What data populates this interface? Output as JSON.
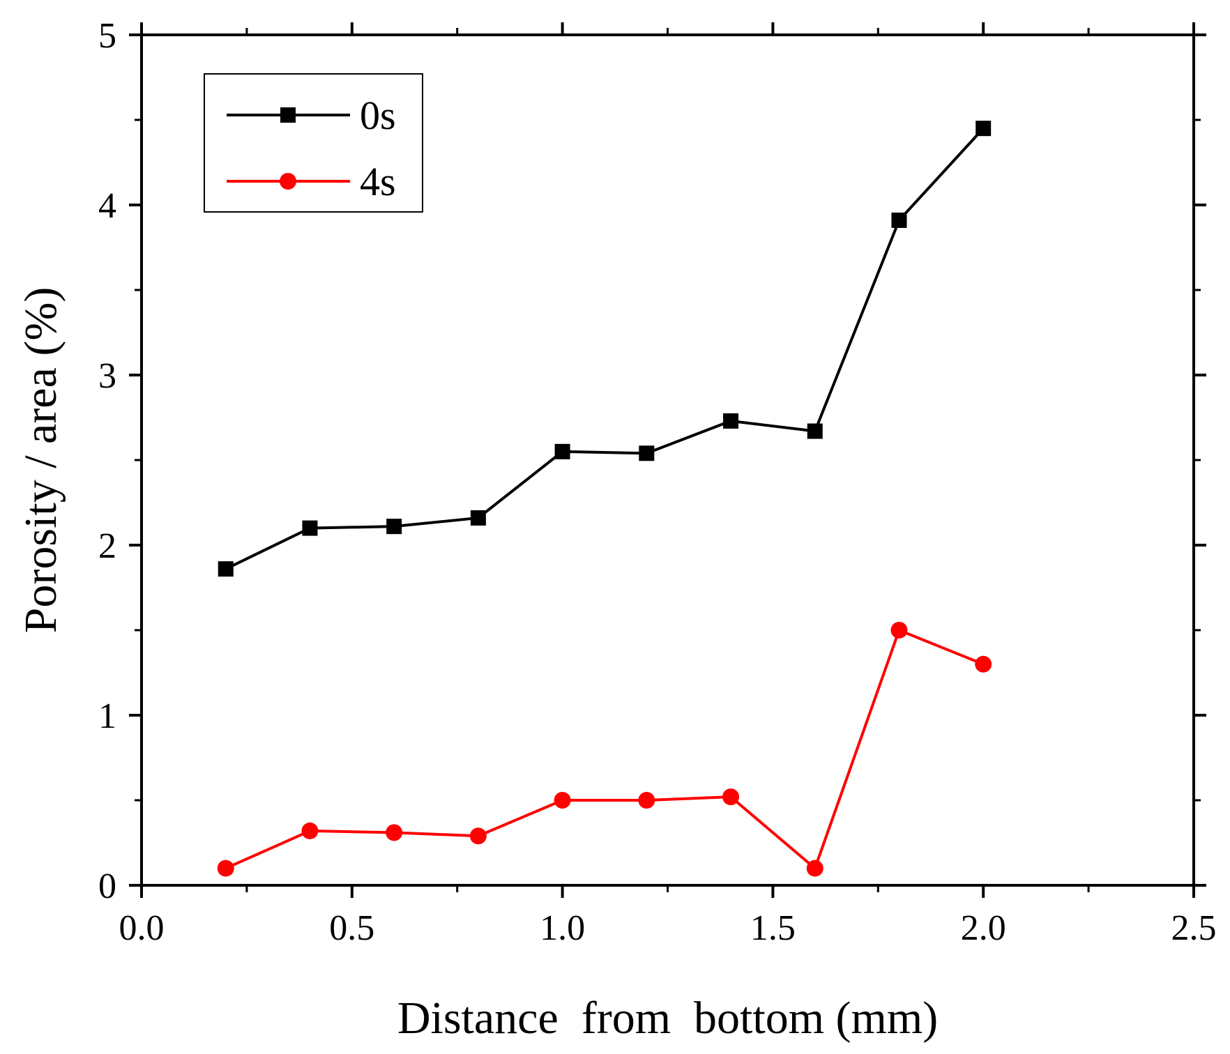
{
  "chart_data": {
    "type": "line",
    "title": "",
    "xlabel": "Distance  from  bottom (mm)",
    "ylabel": "Porosity / area (%)",
    "xlim": [
      0.0,
      2.5
    ],
    "ylim": [
      0,
      5
    ],
    "xticks": [
      0.0,
      0.5,
      1.0,
      1.5,
      2.0,
      2.5
    ],
    "xtick_labels": [
      "0.0",
      "0.5",
      "1.0",
      "1.5",
      "2.0",
      "2.5"
    ],
    "yticks": [
      0,
      1,
      2,
      3,
      4,
      5
    ],
    "ytick_labels": [
      "0",
      "1",
      "2",
      "3",
      "4",
      "5"
    ],
    "grid": false,
    "legend_position": "top-left",
    "x": [
      0.2,
      0.4,
      0.6,
      0.8,
      1.0,
      1.2,
      1.4,
      1.6,
      1.8,
      2.0
    ],
    "series": [
      {
        "name": "0s",
        "color": "#000000",
        "marker": "square",
        "values": [
          1.86,
          2.1,
          2.11,
          2.16,
          2.55,
          2.54,
          2.73,
          2.67,
          3.91,
          4.45
        ]
      },
      {
        "name": "4s",
        "color": "#ff0000",
        "marker": "circle",
        "values": [
          0.1,
          0.32,
          0.31,
          0.29,
          0.5,
          0.5,
          0.52,
          0.1,
          1.5,
          1.3
        ]
      }
    ]
  }
}
